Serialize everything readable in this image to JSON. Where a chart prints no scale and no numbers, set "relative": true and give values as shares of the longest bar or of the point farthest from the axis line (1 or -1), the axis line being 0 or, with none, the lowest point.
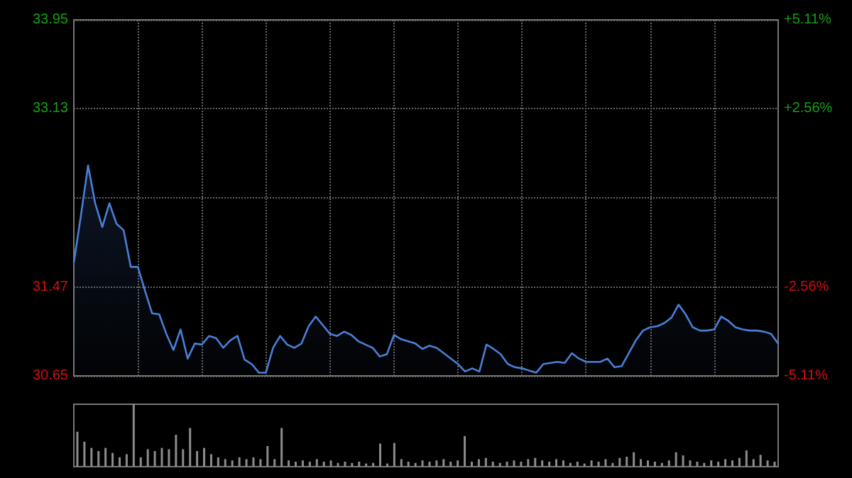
{
  "chart_data": [
    {
      "type": "area",
      "categories": [
        null,
        null,
        null,
        null,
        null,
        null,
        null,
        null,
        null,
        null,
        null,
        null,
        null,
        null,
        null,
        null,
        null,
        null,
        null,
        null,
        null,
        null,
        null,
        null,
        null,
        null,
        null,
        null,
        null,
        null,
        null,
        null,
        null,
        null,
        null,
        null,
        null,
        null,
        null,
        null,
        null,
        null,
        null,
        null,
        null,
        null,
        null,
        null,
        null,
        null,
        null,
        null,
        null,
        null,
        null,
        null,
        null,
        null,
        null,
        null,
        null,
        null,
        null,
        null,
        null,
        null,
        null,
        null,
        null,
        null,
        null,
        null,
        null,
        null,
        null,
        null,
        null,
        null,
        null,
        null,
        null,
        null,
        null,
        null,
        null,
        null,
        null,
        null,
        null,
        null,
        null,
        null,
        null,
        null,
        null,
        null,
        null,
        null,
        null,
        null
      ],
      "values": [
        31.7,
        32.14,
        32.6,
        32.25,
        32.03,
        32.25,
        32.06,
        32.0,
        31.66,
        31.66,
        31.44,
        31.23,
        31.22,
        31.04,
        30.89,
        31.08,
        30.81,
        30.95,
        30.94,
        31.02,
        31.0,
        30.91,
        30.98,
        31.02,
        30.8,
        30.76,
        30.68,
        30.68,
        30.91,
        31.02,
        30.94,
        30.91,
        30.95,
        31.11,
        31.2,
        31.12,
        31.04,
        31.02,
        31.06,
        31.03,
        30.97,
        30.94,
        30.91,
        30.83,
        30.85,
        31.03,
        30.99,
        30.97,
        30.95,
        30.9,
        30.93,
        30.91,
        30.86,
        30.81,
        30.76,
        30.69,
        30.72,
        30.69,
        30.94,
        30.9,
        30.85,
        30.76,
        30.73,
        30.72,
        30.7,
        30.68,
        30.76,
        30.77,
        30.78,
        30.77,
        30.86,
        30.81,
        30.78,
        30.78,
        30.78,
        30.81,
        30.73,
        30.74,
        30.86,
        30.98,
        31.07,
        31.1,
        31.11,
        31.14,
        31.19,
        31.31,
        31.22,
        31.1,
        31.07,
        31.07,
        31.08,
        31.2,
        31.16,
        31.1,
        31.08,
        31.07,
        31.07,
        31.06,
        31.04,
        30.95
      ],
      "color": "#4a7fd6",
      "marker": "none",
      "grid": true,
      "ylim": [
        30.65,
        33.95
      ],
      "yticks": [
        30.65,
        31.47,
        {
          "value": 32.3,
          "label": null
        },
        33.13,
        33.95
      ],
      "y2lim": [
        -5.11,
        5.11
      ],
      "y2ticks": [
        {
          "value": -5.11,
          "label": "-5.11%"
        },
        {
          "value": -2.56,
          "label": "-2.56%"
        },
        {
          "value": 0,
          "label": null
        },
        {
          "value": 2.56,
          "label": "+2.56%"
        },
        {
          "value": 5.11,
          "label": "+5.11%"
        }
      ]
    },
    {
      "type": "bar",
      "relative": true,
      "categories": [
        null,
        null,
        null,
        null,
        null,
        null,
        null,
        null,
        null,
        null,
        null,
        null,
        null,
        null,
        null,
        null,
        null,
        null,
        null,
        null,
        null,
        null,
        null,
        null,
        null,
        null,
        null,
        null,
        null,
        null,
        null,
        null,
        null,
        null,
        null,
        null,
        null,
        null,
        null,
        null,
        null,
        null,
        null,
        null,
        null,
        null,
        null,
        null,
        null,
        null,
        null,
        null,
        null,
        null,
        null,
        null,
        null,
        null,
        null,
        null,
        null,
        null,
        null,
        null,
        null,
        null,
        null,
        null,
        null,
        null,
        null,
        null,
        null,
        null,
        null,
        null,
        null,
        null,
        null,
        null,
        null,
        null,
        null,
        null,
        null,
        null,
        null,
        null,
        null,
        null,
        null,
        null,
        null,
        null,
        null,
        null,
        null,
        null,
        null,
        null
      ],
      "values": [
        0.56,
        0.4,
        0.3,
        0.25,
        0.3,
        0.22,
        0.15,
        0.2,
        1,
        0.15,
        0.28,
        0.25,
        0.3,
        0.28,
        0.51,
        0.28,
        0.62,
        0.25,
        0.3,
        0.2,
        0.15,
        0.12,
        0.1,
        0.15,
        0.12,
        0.15,
        0.12,
        0.33,
        0.12,
        0.62,
        0.1,
        0.08,
        0.1,
        0.08,
        0.12,
        0.08,
        0.1,
        0.06,
        0.08,
        0.06,
        0.08,
        0.05,
        0.06,
        0.37,
        0.05,
        0.38,
        0.12,
        0.08,
        0.06,
        0.1,
        0.08,
        0.1,
        0.12,
        0.08,
        0.1,
        0.49,
        0.08,
        0.12,
        0.14,
        0.08,
        0.06,
        0.08,
        0.1,
        0.08,
        0.12,
        0.14,
        0.1,
        0.08,
        0.12,
        0.1,
        0.06,
        0.08,
        0.05,
        0.1,
        0.08,
        0.12,
        0.06,
        0.14,
        0.16,
        0.23,
        0.12,
        0.1,
        0.08,
        0.06,
        0.1,
        0.23,
        0.18,
        0.1,
        0.08,
        0.06,
        0.1,
        0.08,
        0.12,
        0.1,
        0.14,
        0.26,
        0.12,
        0.19,
        0.1,
        0.08
      ],
      "color": "#8c8c8c"
    }
  ]
}
